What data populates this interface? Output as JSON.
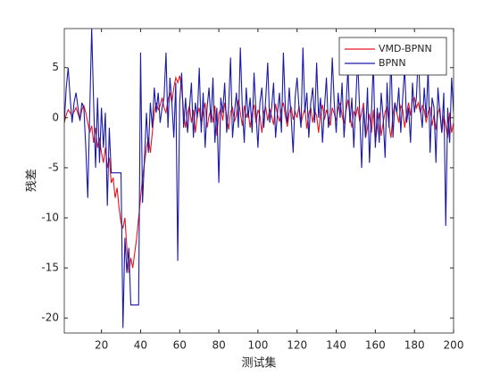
{
  "chart_data": {
    "type": "line",
    "xlabel": "测试集",
    "ylabel": "残差",
    "x": [
      1,
      2,
      3,
      4,
      5,
      6,
      7,
      8,
      9,
      10,
      11,
      12,
      13,
      14,
      15,
      16,
      17,
      18,
      19,
      20,
      21,
      22,
      23,
      24,
      25,
      26,
      27,
      28,
      29,
      30,
      31,
      32,
      33,
      34,
      35,
      36,
      37,
      38,
      39,
      40,
      41,
      42,
      43,
      44,
      45,
      46,
      47,
      48,
      49,
      50,
      51,
      52,
      53,
      54,
      55,
      56,
      57,
      58,
      59,
      60,
      61,
      62,
      63,
      64,
      65,
      66,
      67,
      68,
      69,
      70,
      71,
      72,
      73,
      74,
      75,
      76,
      77,
      78,
      79,
      80,
      81,
      82,
      83,
      84,
      85,
      86,
      87,
      88,
      89,
      90,
      91,
      92,
      93,
      94,
      95,
      96,
      97,
      98,
      99,
      100,
      101,
      102,
      103,
      104,
      105,
      106,
      107,
      108,
      109,
      110,
      111,
      112,
      113,
      114,
      115,
      116,
      117,
      118,
      119,
      120,
      121,
      122,
      123,
      124,
      125,
      126,
      127,
      128,
      129,
      130,
      131,
      132,
      133,
      134,
      135,
      136,
      137,
      138,
      139,
      140,
      141,
      142,
      143,
      144,
      145,
      146,
      147,
      148,
      149,
      150,
      151,
      152,
      153,
      154,
      155,
      156,
      157,
      158,
      159,
      160,
      161,
      162,
      163,
      164,
      165,
      166,
      167,
      168,
      169,
      170,
      171,
      172,
      173,
      174,
      175,
      176,
      177,
      178,
      179,
      180,
      181,
      182,
      183,
      184,
      185,
      186,
      187,
      188,
      189,
      190,
      191,
      192,
      193,
      194,
      195,
      196,
      197,
      198,
      199,
      200
    ],
    "series": [
      {
        "name": "VMD-BPNN",
        "color": "#e8161c",
        "values": [
          -0.5,
          0.3,
          0.8,
          0.5,
          0.2,
          0.6,
          1.0,
          0.4,
          -0.2,
          0.8,
          1.2,
          0.5,
          -0.5,
          -1.5,
          -0.8,
          -2.5,
          -1.0,
          -3.0,
          -2.0,
          -3.5,
          -4.5,
          -3.0,
          -5.0,
          -4.0,
          -6.5,
          -6.0,
          -8.0,
          -7.0,
          -9.0,
          -10.5,
          -11.0,
          -10.0,
          -13.0,
          -15.5,
          -14.0,
          -15.0,
          -13.5,
          -12.0,
          -10.0,
          -8.0,
          -6.0,
          -4.5,
          -3.0,
          -2.0,
          -3.5,
          -1.5,
          0.5,
          1.5,
          0.8,
          1.2,
          2.0,
          1.0,
          0.5,
          1.8,
          2.5,
          1.5,
          3.0,
          4.0,
          3.5,
          4.2,
          3.0,
          0.5,
          -1.0,
          0.5,
          1.2,
          -0.5,
          0.8,
          -1.5,
          0.3,
          1.0,
          -0.8,
          0.5,
          1.5,
          -1.0,
          0.2,
          0.8,
          -0.5,
          1.2,
          -1.8,
          0.4,
          0.9,
          -0.3,
          1.5,
          0.2,
          -1.2,
          0.6,
          1.0,
          -0.4,
          0.3,
          1.8,
          0.5,
          -0.8,
          1.2,
          0.0,
          0.7,
          -1.0,
          0.4,
          1.3,
          -0.5,
          0.8,
          0.2,
          -1.5,
          0.6,
          1.0,
          -0.3,
          0.9,
          0.1,
          -0.7,
          1.4,
          0.3,
          -0.4,
          0.8,
          1.5,
          0.2,
          -0.9,
          0.5,
          1.1,
          -0.2,
          0.6,
          0.0,
          1.2,
          -0.6,
          0.3,
          0.9,
          -1.1,
          0.4,
          1.0,
          -0.5,
          0.7,
          0.2,
          -1.5,
          0.5,
          1.3,
          -0.2,
          0.8,
          0.1,
          -0.8,
          1.0,
          0.4,
          -0.3,
          0.9,
          1.5,
          0.2,
          -0.6,
          0.7,
          1.8,
          0.3,
          -1.0,
          0.6,
          0.2,
          1.1,
          -0.4,
          0.5,
          1.5,
          -2.0,
          -1.0,
          0.4,
          -1.5,
          0.8,
          -2.5,
          -1.0,
          0.5,
          -1.8,
          -0.5,
          0.6,
          1.0,
          -0.8,
          -2.0,
          0.3,
          1.5,
          0.5,
          -0.5,
          1.2,
          0.8,
          -1.0,
          0.4,
          1.5,
          0.2,
          1.8,
          2.0,
          1.0,
          1.5,
          0.5,
          1.2,
          0.8,
          -0.5,
          0.6,
          1.0,
          -0.8,
          0.3,
          -1.2,
          0.5,
          1.0,
          -1.5,
          0.2,
          -0.8,
          -2.0,
          0.5,
          -1.5,
          -0.5
        ]
      },
      {
        "name": "BPNN",
        "color": "#1a1aa6",
        "values": [
          -0.5,
          3.0,
          5.0,
          2.0,
          -0.5,
          1.5,
          2.5,
          1.0,
          -0.3,
          1.5,
          1.0,
          -3.0,
          -8.0,
          0.5,
          9.0,
          1.5,
          -5.0,
          2.0,
          -4.5,
          1.0,
          -3.0,
          0.5,
          -8.8,
          -1.0,
          -5.5,
          -5.5,
          -5.5,
          -5.5,
          -5.5,
          -5.5,
          -21.0,
          -12.0,
          -15.5,
          -13.0,
          -18.7,
          -18.7,
          -18.7,
          -18.7,
          -18.7,
          6.5,
          -8.5,
          -4.0,
          0.5,
          -3.5,
          1.5,
          -1.0,
          3.0,
          0.5,
          2.5,
          -0.5,
          1.0,
          2.0,
          6.5,
          -1.0,
          4.0,
          1.5,
          -2.0,
          3.5,
          -14.3,
          1.5,
          4.5,
          -1.0,
          2.0,
          -1.5,
          1.0,
          3.5,
          -2.0,
          1.5,
          0.0,
          5.0,
          -1.5,
          2.5,
          -3.0,
          1.0,
          3.0,
          -0.5,
          4.0,
          -2.5,
          1.0,
          -6.5,
          2.0,
          0.5,
          3.5,
          -1.5,
          1.0,
          6.0,
          -2.0,
          0.5,
          2.5,
          -1.0,
          7.0,
          1.0,
          -2.5,
          3.0,
          0.0,
          2.0,
          -1.5,
          4.5,
          0.5,
          -3.0,
          1.5,
          3.0,
          -1.0,
          2.0,
          5.5,
          -0.5,
          1.0,
          3.5,
          -2.0,
          0.5,
          2.5,
          -1.5,
          6.5,
          1.0,
          -0.5,
          3.0,
          0.0,
          -3.5,
          2.0,
          4.0,
          1.0,
          -1.0,
          7.0,
          0.5,
          2.5,
          -2.0,
          1.5,
          3.0,
          -0.5,
          5.5,
          0.0,
          2.0,
          -2.5,
          1.0,
          4.0,
          -1.0,
          0.5,
          6.0,
          1.5,
          -1.5,
          2.5,
          0.0,
          3.5,
          -2.0,
          1.0,
          5.0,
          -0.5,
          2.0,
          -3.0,
          1.5,
          6.0,
          0.5,
          -5.0,
          1.0,
          -2.0,
          3.0,
          -4.5,
          0.5,
          5.5,
          -3.0,
          1.0,
          -2.5,
          2.5,
          0.0,
          -4.0,
          3.5,
          -1.0,
          6.5,
          -2.0,
          1.5,
          0.5,
          3.0,
          -1.5,
          2.0,
          5.0,
          -0.5,
          1.0,
          -2.5,
          3.5,
          0.5,
          2.0,
          6.5,
          1.0,
          -1.0,
          3.0,
          0.0,
          5.0,
          -3.5,
          2.0,
          1.0,
          -4.5,
          3.0,
          0.5,
          -1.5,
          2.5,
          -10.8,
          1.0,
          -2.5,
          4.0,
          0.5
        ]
      }
    ],
    "xlim": [
      1,
      200
    ],
    "xticks": [
      20,
      40,
      60,
      80,
      100,
      120,
      140,
      160,
      180,
      200
    ],
    "ylim": [
      -21.5,
      8.9
    ],
    "yticks": [
      -20,
      -15,
      -10,
      -5,
      0,
      5
    ],
    "legend": "upper right"
  }
}
